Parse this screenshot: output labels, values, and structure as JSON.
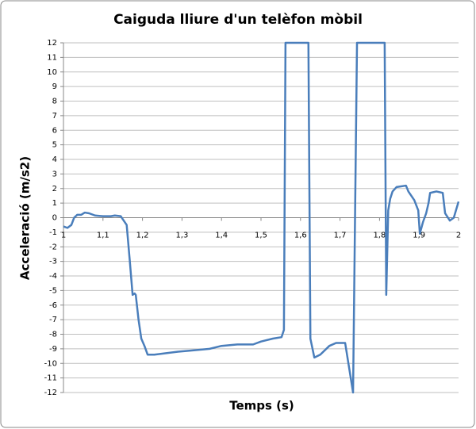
{
  "chart_data": {
    "type": "line",
    "title": "Caiguda lliure d'un telèfon mòbil",
    "x_label": "Temps (s)",
    "y_label": "Acceleració (m/s2)",
    "x": [
      1.0,
      1.01,
      1.02,
      1.027,
      1.035,
      1.045,
      1.054,
      1.065,
      1.08,
      1.1,
      1.12,
      1.13,
      1.145,
      1.16,
      1.168,
      1.175,
      1.18,
      1.183,
      1.19,
      1.197,
      1.205,
      1.213,
      1.23,
      1.26,
      1.29,
      1.33,
      1.37,
      1.4,
      1.44,
      1.48,
      1.5,
      1.53,
      1.552,
      1.558,
      1.562,
      1.62,
      1.625,
      1.635,
      1.65,
      1.673,
      1.69,
      1.713,
      1.733,
      1.743,
      1.813,
      1.817,
      1.822,
      1.827,
      1.833,
      1.843,
      1.867,
      1.873,
      1.888,
      1.898,
      1.902,
      1.91,
      1.918,
      1.924,
      1.928,
      1.944,
      1.96,
      1.966,
      1.978,
      1.988,
      2.0
    ],
    "series": [
      {
        "name": "Acceleració",
        "color": "#4a7ebb",
        "values": [
          -0.6,
          -0.7,
          -0.5,
          0.0,
          0.2,
          0.2,
          0.35,
          0.3,
          0.15,
          0.1,
          0.1,
          0.15,
          0.1,
          -0.5,
          -3.0,
          -5.3,
          -5.2,
          -5.3,
          -7.0,
          -8.3,
          -8.8,
          -9.4,
          -9.4,
          -9.3,
          -9.2,
          -9.1,
          -9.0,
          -8.8,
          -8.7,
          -8.7,
          -8.5,
          -8.3,
          -8.2,
          -7.7,
          12,
          12,
          -8.3,
          -9.6,
          -9.4,
          -8.8,
          -8.6,
          -8.6,
          -12,
          12,
          12,
          -5.3,
          0.5,
          1.3,
          1.8,
          2.1,
          2.2,
          1.8,
          1.2,
          0.5,
          -1.1,
          -0.3,
          0.3,
          1.0,
          1.7,
          1.8,
          1.7,
          0.3,
          -0.2,
          0.0,
          1.1
        ]
      }
    ],
    "xlim": [
      1,
      2
    ],
    "xticks": [
      {
        "value": 1,
        "label": "1"
      },
      {
        "value": 1.1,
        "label": "1,1"
      },
      {
        "value": 1.2,
        "label": "1,2"
      },
      {
        "value": 1.3,
        "label": "1,3"
      },
      {
        "value": 1.4,
        "label": "1,4"
      },
      {
        "value": 1.5,
        "label": "1,5"
      },
      {
        "value": 1.6,
        "label": "1,6"
      },
      {
        "value": 1.7,
        "label": "1,7"
      },
      {
        "value": 1.8,
        "label": "1,8"
      },
      {
        "value": 1.9,
        "label": "1,9"
      },
      {
        "value": 2,
        "label": "2"
      }
    ],
    "ylim": [
      -12,
      12
    ],
    "yticks": [
      -12,
      -11,
      -10,
      -9,
      -8,
      -7,
      -6,
      -5,
      -4,
      -3,
      -2,
      -1,
      0,
      1,
      2,
      3,
      4,
      5,
      6,
      7,
      8,
      9,
      10,
      11,
      12
    ],
    "grid": true
  }
}
